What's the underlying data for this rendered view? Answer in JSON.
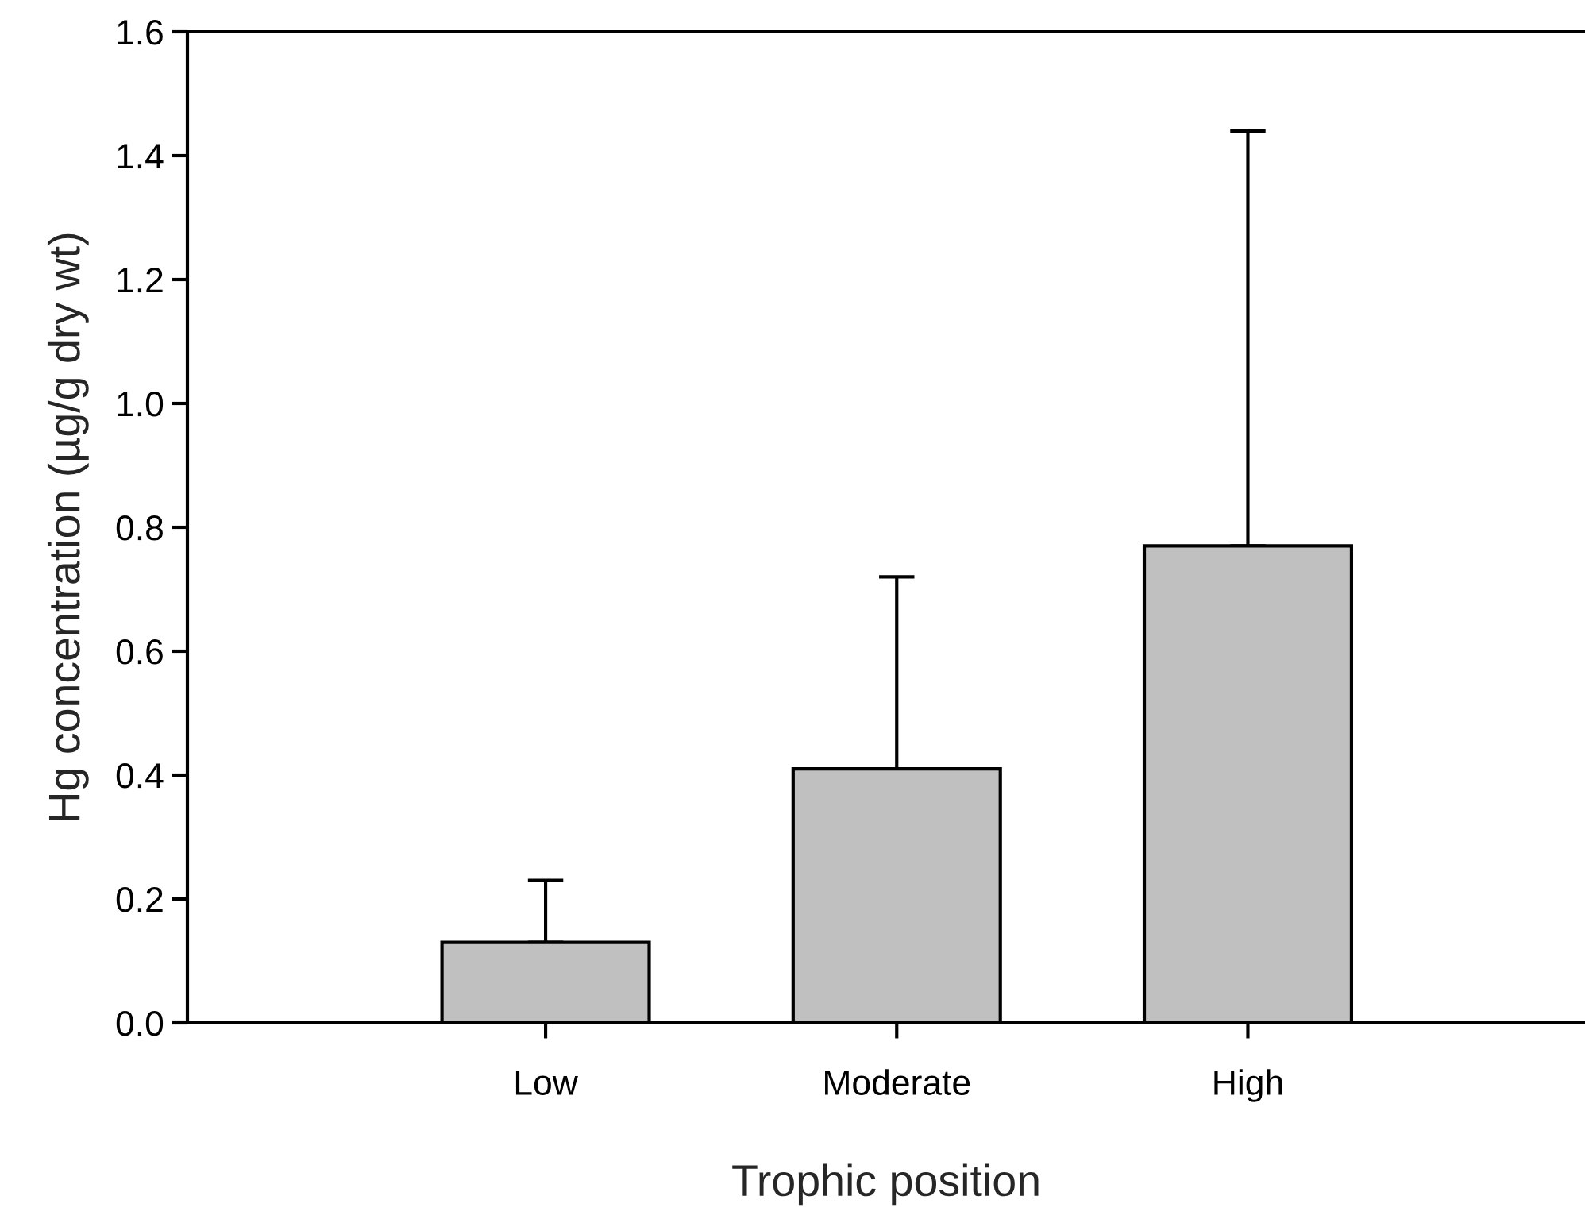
{
  "chart_data": {
    "type": "bar",
    "xlabel": "Trophic position",
    "ylabel": "Hg concentration (µg/g dry wt)",
    "categories": [
      "Low",
      "Moderate",
      "High"
    ],
    "values": [
      0.13,
      0.41,
      0.77
    ],
    "errors": [
      [
        0.13,
        0.23
      ],
      [
        0.41,
        0.72
      ],
      [
        0.77,
        1.44
      ]
    ],
    "color": "#c0c0c0",
    "ylim": [
      0,
      1.6
    ],
    "yticks": [
      {
        "value": 0,
        "label": "0.0"
      },
      0.2,
      0.4,
      0.6,
      0.8,
      {
        "value": 1,
        "label": "1.0"
      },
      1.2,
      1.4,
      1.6
    ],
    "grid": false,
    "legend": false
  }
}
